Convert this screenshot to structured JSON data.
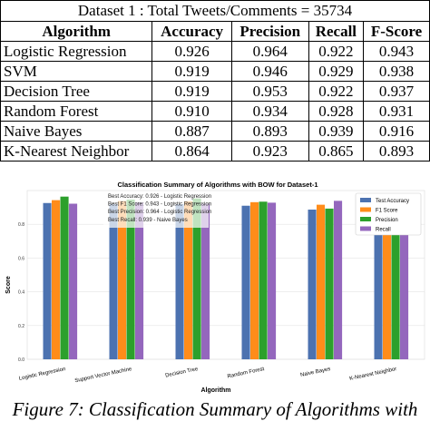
{
  "table": {
    "caption": "Dataset 1 :  Total Tweets/Comments = 35734",
    "headers": [
      "Algorithm",
      "Accuracy",
      "Precision",
      "Recall",
      "F-Score"
    ],
    "rows": [
      [
        "Logistic Regression",
        "0.926",
        "0.964",
        "0.922",
        "0.943"
      ],
      [
        "SVM",
        "0.919",
        "0.946",
        "0.929",
        "0.938"
      ],
      [
        "Decision Tree",
        "0.919",
        "0.953",
        "0.922",
        "0.937"
      ],
      [
        "Random Forest",
        "0.910",
        "0.934",
        "0.928",
        "0.931"
      ],
      [
        "Naive Bayes",
        "0.887",
        "0.893",
        "0.939",
        "0.916"
      ],
      [
        "K-Nearest Neighbor",
        "0.864",
        "0.923",
        "0.865",
        "0.893"
      ]
    ]
  },
  "chart_data": {
    "type": "bar",
    "title": "Classification Summary of Algorithms with BOW for Dataset-1",
    "xlabel": "Algorithm",
    "ylabel": "Score",
    "categories": [
      "Logistic Regression",
      "Support Vector Machine",
      "Decision Tree",
      "Random Forest",
      "Naive Bayes",
      "K-Nearest Neighbor"
    ],
    "series": [
      {
        "name": "Test Accuracy",
        "color": "#4c72b0",
        "values": [
          0.926,
          0.919,
          0.919,
          0.91,
          0.887,
          0.864
        ]
      },
      {
        "name": "F1 Score",
        "color": "#ff8c1a",
        "values": [
          0.943,
          0.938,
          0.937,
          0.931,
          0.916,
          0.893
        ]
      },
      {
        "name": "Precision",
        "color": "#2ca02c",
        "values": [
          0.964,
          0.946,
          0.953,
          0.934,
          0.893,
          0.923
        ]
      },
      {
        "name": "Recall",
        "color": "#9467bd",
        "values": [
          0.922,
          0.929,
          0.922,
          0.928,
          0.939,
          0.865
        ]
      }
    ],
    "annotations": [
      "Best Accuracy: 0.926 - Logistic Regression",
      "Best F1 Score: 0.943 - Logistic Regression",
      "Best Precision: 0.964 - Logistic Regression",
      "Best Recall: 0.939 - Naive Bayes"
    ],
    "ytick_labels": [
      "0.8",
      "0.6",
      "0.4",
      "0.2",
      "0.0"
    ],
    "ylim": [
      0,
      1.0
    ],
    "legend_position": "top-right",
    "grid": true
  },
  "figure_caption": "Figure 7: Classification Summary of Algorithms with"
}
